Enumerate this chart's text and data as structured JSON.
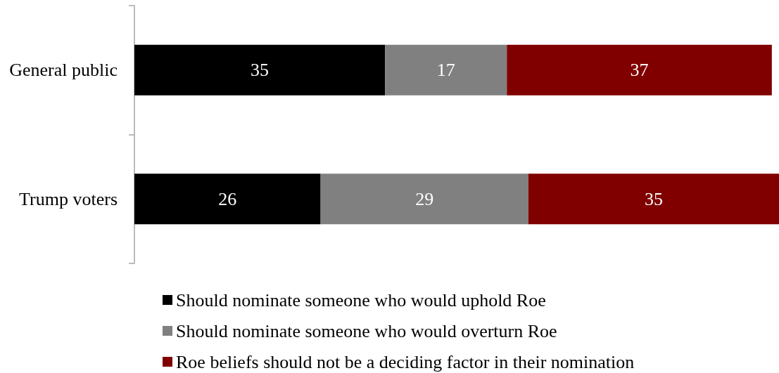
{
  "chart_data": {
    "type": "bar",
    "orientation": "horizontal",
    "stacked": true,
    "data_labels": true,
    "legend": "bottom",
    "grid": false,
    "tick_labels": "y",
    "categories": [
      "General public",
      "Trump voters"
    ],
    "series": [
      {
        "name": "Should nominate someone who would uphold Roe",
        "color": "#000000",
        "values": [
          35,
          26
        ]
      },
      {
        "name": "Should nominate someone who would overturn Roe",
        "color": "#808080",
        "values": [
          17,
          29
        ]
      },
      {
        "name": "Roe beliefs should not be a deciding factor in their nomination",
        "color": "#800000",
        "values": [
          37,
          35
        ]
      }
    ]
  }
}
